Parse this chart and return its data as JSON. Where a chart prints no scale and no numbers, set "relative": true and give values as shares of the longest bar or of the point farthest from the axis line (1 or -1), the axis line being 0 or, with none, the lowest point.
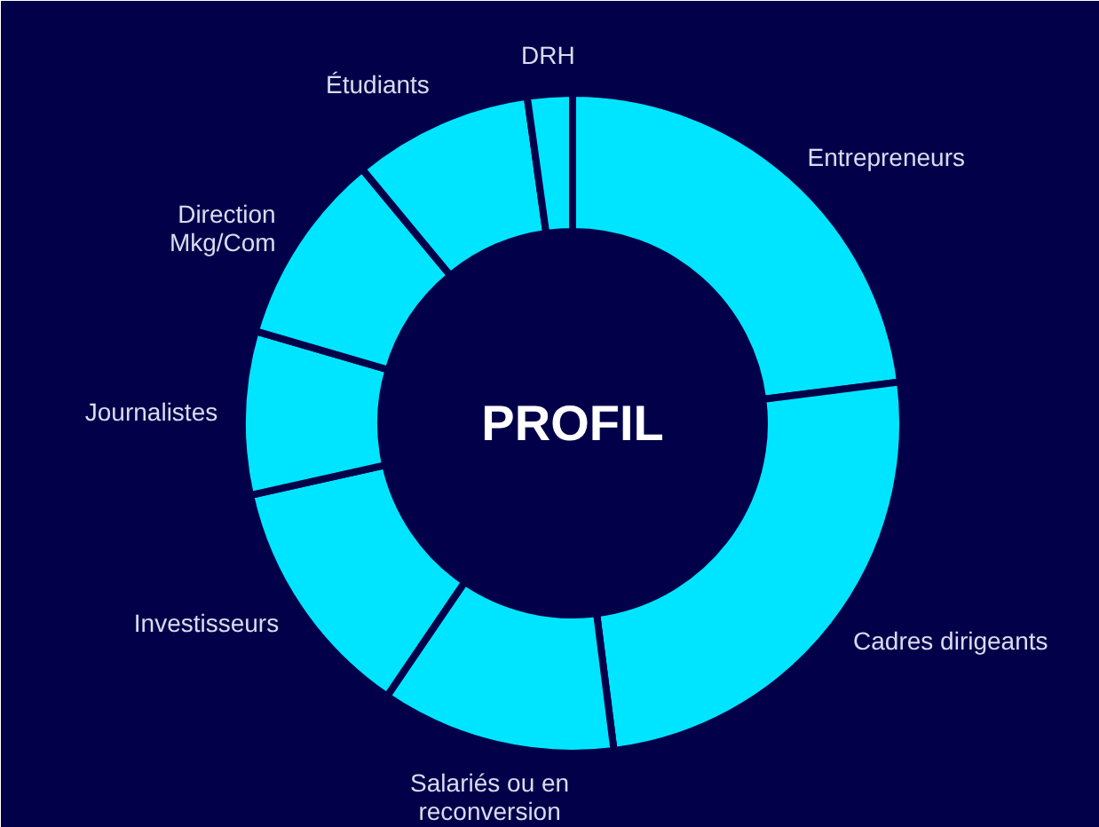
{
  "chart_data": {
    "type": "donut",
    "title": "PROFIL",
    "relative": true,
    "categories": [
      "Entrepreneurs",
      "Cadres dirigeants",
      "Salariés ou en\nreconversion",
      "Investisseurs",
      "Journalistes",
      "Direction\nMkg/Com",
      "Étudiants",
      "DRH"
    ],
    "values": [
      23,
      25,
      11.5,
      12,
      8,
      9.5,
      8.8,
      2.2
    ],
    "colors": [
      "#00e5ff",
      "#00e5ff",
      "#00e5ff",
      "#00e5ff",
      "#00e5ff",
      "#00e5ff",
      "#00e5ff",
      "#00e5ff"
    ]
  }
}
